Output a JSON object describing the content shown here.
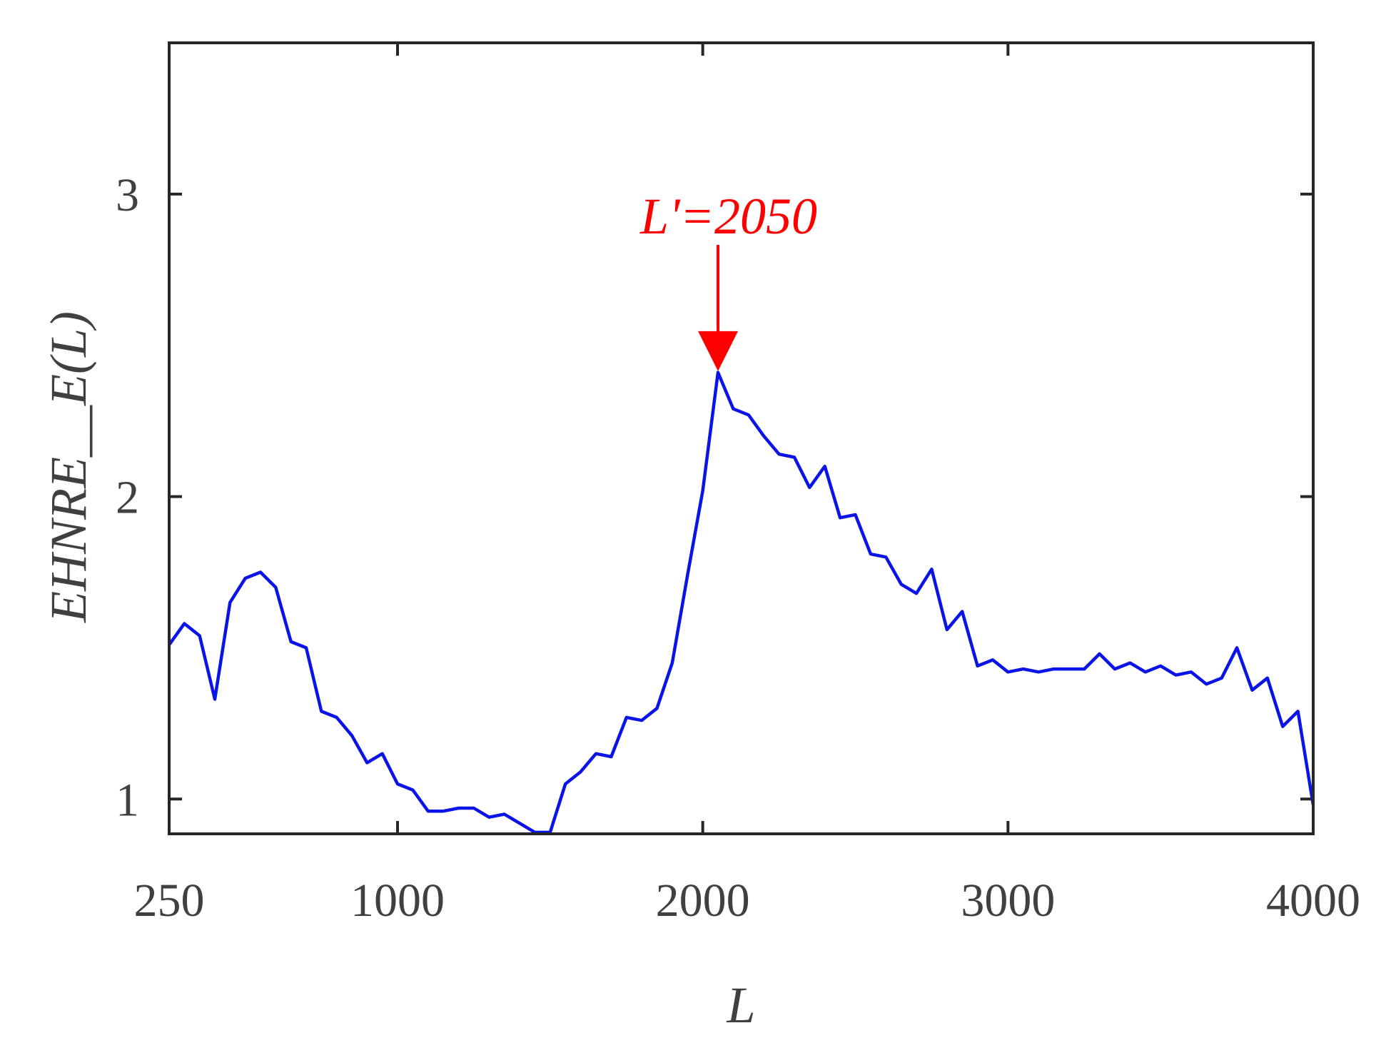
{
  "colors": {
    "line": "#0a14e6",
    "annotation": "#ff0000",
    "axis": "#262626",
    "text": "#404040"
  },
  "chart_data": {
    "type": "line",
    "title": "",
    "xlabel": "L",
    "ylabel": "EHNRE__E(L)",
    "xlim": [
      250,
      4000
    ],
    "ylim": [
      0.885,
      3.5
    ],
    "x_ticks": [
      250,
      1000,
      2000,
      3000,
      4000
    ],
    "y_ticks": [
      1,
      2,
      3
    ],
    "x_tick_labels": [
      "250",
      "1000",
      "2000",
      "3000",
      "4000"
    ],
    "y_tick_labels": [
      "1",
      "2",
      "3"
    ],
    "grid": false,
    "legend": "none",
    "series": [
      {
        "x": [
          250,
          300,
          350,
          400,
          450,
          500,
          550,
          600,
          650,
          700,
          750,
          800,
          850,
          900,
          950,
          1000,
          1050,
          1100,
          1150,
          1200,
          1250,
          1300,
          1350,
          1400,
          1450,
          1500,
          1550,
          1600,
          1650,
          1700,
          1750,
          1800,
          1850,
          1900,
          1950,
          2000,
          2050,
          2100,
          2150,
          2200,
          2250,
          2300,
          2350,
          2400,
          2450,
          2500,
          2550,
          2600,
          2650,
          2700,
          2750,
          2800,
          2850,
          2900,
          2950,
          3000,
          3050,
          3100,
          3150,
          3200,
          3250,
          3300,
          3350,
          3400,
          3450,
          3500,
          3550,
          3600,
          3650,
          3700,
          3750,
          3800,
          3850,
          3900,
          3950,
          4000
        ],
        "y": [
          1.51,
          1.58,
          1.54,
          1.33,
          1.65,
          1.73,
          1.75,
          1.7,
          1.52,
          1.5,
          1.29,
          1.27,
          1.21,
          1.12,
          1.15,
          1.05,
          1.03,
          0.96,
          0.96,
          0.97,
          0.97,
          0.94,
          0.95,
          0.92,
          0.89,
          0.89,
          1.05,
          1.09,
          1.15,
          1.14,
          1.27,
          1.26,
          1.3,
          1.45,
          1.74,
          2.02,
          2.41,
          2.29,
          2.27,
          2.2,
          2.14,
          2.13,
          2.03,
          2.1,
          1.93,
          1.94,
          1.81,
          1.8,
          1.71,
          1.68,
          1.76,
          1.56,
          1.62,
          1.44,
          1.46,
          1.42,
          1.43,
          1.42,
          1.43,
          1.43,
          1.43,
          1.48,
          1.43,
          1.45,
          1.42,
          1.44,
          1.41,
          1.42,
          1.38,
          1.4,
          1.5,
          1.36,
          1.4,
          1.24,
          1.29,
          0.98
        ]
      }
    ],
    "annotations": [
      {
        "text": "L'=2050",
        "x": 2050,
        "y": 2.41
      }
    ]
  }
}
